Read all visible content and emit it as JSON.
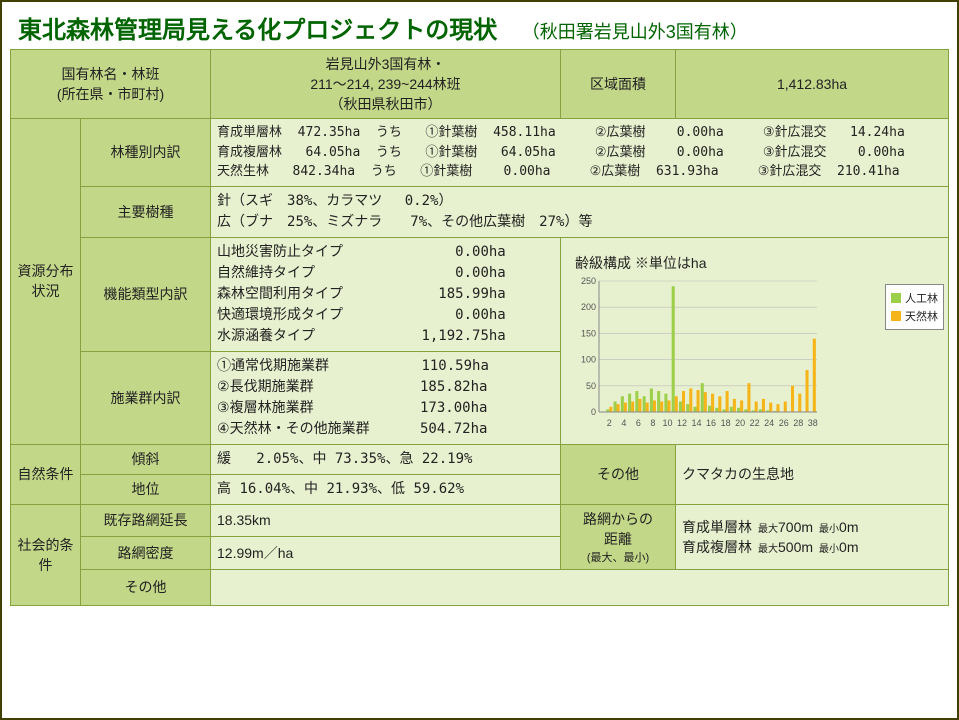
{
  "title": {
    "main": "東北森林管理局見える化プロジェクトの現状",
    "sub": "（秋田署岩見山外3国有林）"
  },
  "row1": {
    "col1_label_a": "国有林名・林班",
    "col1_label_b": "(所在県・市町村)",
    "col2_val_a": "岩見山外3国有林・",
    "col2_val_b": "211～214, 239~244林班",
    "col2_val_c": "（秋田県秋田市）",
    "col3_label": "区域面積",
    "col4_val": "1,412.83ha"
  },
  "resource": {
    "section_label": "資源分布状況",
    "r1_label": "林種別内訳",
    "r1_text": "育成単層林  472.35ha  うち   ①針葉樹  458.11ha     ②広葉樹    0.00ha     ③針広混交   14.24ha\n育成複層林   64.05ha  うち   ①針葉樹   64.05ha     ②広葉樹    0.00ha     ③針広混交    0.00ha\n天然生林   842.34ha  うち   ①針葉樹    0.00ha     ②広葉樹  631.93ha     ③針広混交  210.41ha",
    "r2_label": "主要樹種",
    "r2_text": "針（スギ　38%、カラマツ　 0.2%）\n広（ブナ　25%、ミズナラ　　7%、その他広葉樹　27%）等",
    "r3_label": "機能類型内訳",
    "r3_items": [
      [
        "山地災害防止タイプ",
        "0.00ha"
      ],
      [
        "自然維持タイプ",
        "0.00ha"
      ],
      [
        "森林空間利用タイプ",
        "185.99ha"
      ],
      [
        "快適環境形成タイプ",
        "0.00ha"
      ],
      [
        "水源涵養タイプ",
        "1,192.75ha"
      ]
    ],
    "r4_label": "施業群内訳",
    "r4_items": [
      [
        "①通常伐期施業群",
        "110.59ha"
      ],
      [
        "②長伐期施業群",
        "185.82ha"
      ],
      [
        "③複層林施業群",
        "173.00ha"
      ],
      [
        "④天然林・その他施業群",
        "504.72ha"
      ]
    ]
  },
  "chart": {
    "title": "齢級構成 ※単位はha",
    "legend1": "人工林",
    "legend2": "天然林",
    "color1": "#9ccf4a",
    "color2": "#f5b417",
    "y_max": 250,
    "y_ticks": [
      0,
      50,
      100,
      150,
      200,
      250
    ],
    "x_labels": [
      "2",
      "4",
      "6",
      "8",
      "10",
      "12",
      "14",
      "16",
      "18",
      "20",
      "22",
      "24",
      "26",
      "28",
      "38"
    ],
    "series1": [
      0,
      5,
      20,
      30,
      35,
      40,
      30,
      45,
      40,
      35,
      240,
      20,
      15,
      10,
      55,
      12,
      8,
      5,
      10,
      8,
      5,
      3,
      5,
      3,
      2,
      0,
      0,
      0,
      0,
      0
    ],
    "series2": [
      0,
      10,
      15,
      18,
      20,
      25,
      18,
      22,
      20,
      22,
      30,
      40,
      45,
      42,
      38,
      35,
      30,
      40,
      25,
      22,
      55,
      20,
      25,
      18,
      15,
      20,
      50,
      35,
      80,
      140
    ]
  },
  "natural": {
    "section_label": "自然条件",
    "r1_label": "傾斜",
    "r1_val": "緩   2.05%、中 73.35%、急 22.19%",
    "r2_label": "地位",
    "r2_val": "高 16.04%、中 21.93%、低 59.62%",
    "other_label": "その他",
    "other_val": "クマタカの生息地"
  },
  "social": {
    "section_label": "社会的条件",
    "r1_label": "既存路網延長",
    "r1_val": "18.35km",
    "r2_label": "路網密度",
    "r2_val": "12.99m／ha",
    "r3_label": "その他",
    "dist_label_a": "路網からの",
    "dist_label_b": "距離",
    "dist_label_c": "(最大、最小)",
    "dist_rows": [
      {
        "name": "育成単層林",
        "max": "700m",
        "min": "0m"
      },
      {
        "name": "育成複層林",
        "max": "500m",
        "min": "0m"
      }
    ],
    "max_label": "最大",
    "min_label": "最小"
  }
}
